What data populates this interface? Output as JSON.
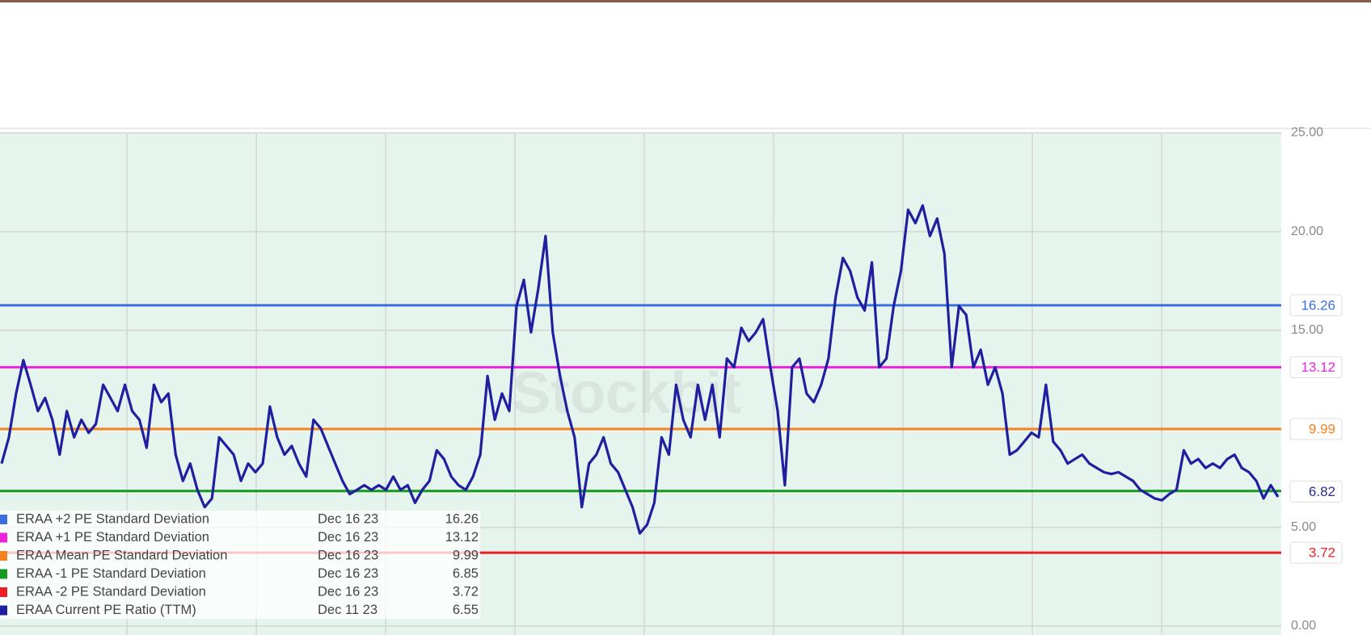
{
  "chart_data": {
    "type": "line",
    "watermark": "Stockbit",
    "ylim": [
      0,
      25
    ],
    "yticks": [
      {
        "value": 0,
        "label": "0.00"
      },
      {
        "value": 5,
        "label": "5.00"
      },
      {
        "value": 15,
        "label": "15.00"
      },
      {
        "value": 20,
        "label": "20.00"
      },
      {
        "value": 25,
        "label": "25.00"
      }
    ],
    "grid": true,
    "reference_lines": [
      {
        "name": "ERAA +2 PE Standard Deviation",
        "color": "#3b6fe0",
        "date": "Dec 16 23",
        "value": 16.26,
        "tag": true
      },
      {
        "name": "ERAA +1 PE Standard Deviation",
        "color": "#ee22dd",
        "date": "Dec 16 23",
        "value": 13.12,
        "tag": true
      },
      {
        "name": "ERAA Mean PE Standard Deviation",
        "color": "#f58220",
        "date": "Dec 16 23",
        "value": 9.99,
        "tag": true
      },
      {
        "name": "ERAA -1 PE Standard Deviation",
        "color": "#159a1f",
        "date": "Dec 16 23",
        "value": 6.85,
        "tag": false
      },
      {
        "name": "ERAA -2 PE Standard Deviation",
        "color": "#ee1c25",
        "date": "Dec 16 23",
        "value": 3.72,
        "tag": true
      }
    ],
    "series": [
      {
        "name": "ERAA Current PE Ratio (TTM)",
        "color": "#1f1fa0",
        "date": "Dec 11 23",
        "values": [
          8.24,
          9.57,
          11.79,
          13.48,
          12.23,
          10.9,
          11.57,
          10.46,
          8.69,
          10.9,
          9.57,
          10.46,
          9.8,
          10.24,
          12.23,
          11.57,
          10.9,
          12.23,
          10.9,
          10.46,
          9.04,
          12.23,
          11.35,
          11.79,
          8.69,
          7.36,
          8.24,
          6.91,
          6.03,
          6.47,
          9.57,
          9.13,
          8.69,
          7.36,
          8.24,
          7.8,
          8.24,
          11.13,
          9.57,
          8.69,
          9.13,
          8.24,
          7.58,
          10.46,
          10.02,
          9.13,
          8.24,
          7.36,
          6.69,
          6.91,
          7.14,
          6.91,
          7.14,
          6.91,
          7.58,
          6.91,
          7.14,
          6.25,
          6.91,
          7.36,
          8.91,
          8.47,
          7.58,
          7.14,
          6.91,
          7.58,
          8.69,
          12.68,
          10.46,
          11.79,
          10.9,
          16.22,
          17.55,
          14.89,
          17.11,
          19.77,
          14.89,
          12.68,
          10.9,
          9.57,
          6.03,
          8.24,
          8.69,
          9.57,
          8.24,
          7.8,
          6.91,
          6.03,
          4.7,
          5.14,
          6.25,
          9.57,
          8.69,
          12.23,
          10.46,
          9.57,
          12.23,
          10.46,
          12.23,
          9.57,
          13.56,
          13.12,
          15.12,
          14.45,
          14.89,
          15.56,
          13.12,
          10.9,
          7.14,
          13.12,
          13.56,
          11.79,
          11.35,
          12.23,
          13.56,
          16.67,
          18.66,
          18.0,
          16.67,
          16.0,
          18.44,
          13.12,
          13.56,
          16.22,
          18.0,
          21.1,
          20.43,
          21.32,
          19.77,
          20.66,
          18.88,
          13.12,
          16.22,
          15.78,
          13.12,
          14.01,
          12.23,
          13.12,
          11.79,
          8.69,
          8.91,
          9.35,
          9.8,
          9.57,
          12.23,
          9.35,
          8.91,
          8.24,
          8.47,
          8.69,
          8.24,
          8.02,
          7.8,
          7.71,
          7.8,
          7.58,
          7.36,
          6.91,
          6.69,
          6.47,
          6.38,
          6.69,
          6.91,
          8.91,
          8.24,
          8.47,
          8.02,
          8.24,
          8.02,
          8.47,
          8.69,
          8.02,
          7.8,
          7.36,
          6.47,
          7.14,
          6.55
        ]
      }
    ],
    "current_tag": {
      "value": 6.82,
      "color": "#2b2b9a"
    }
  }
}
